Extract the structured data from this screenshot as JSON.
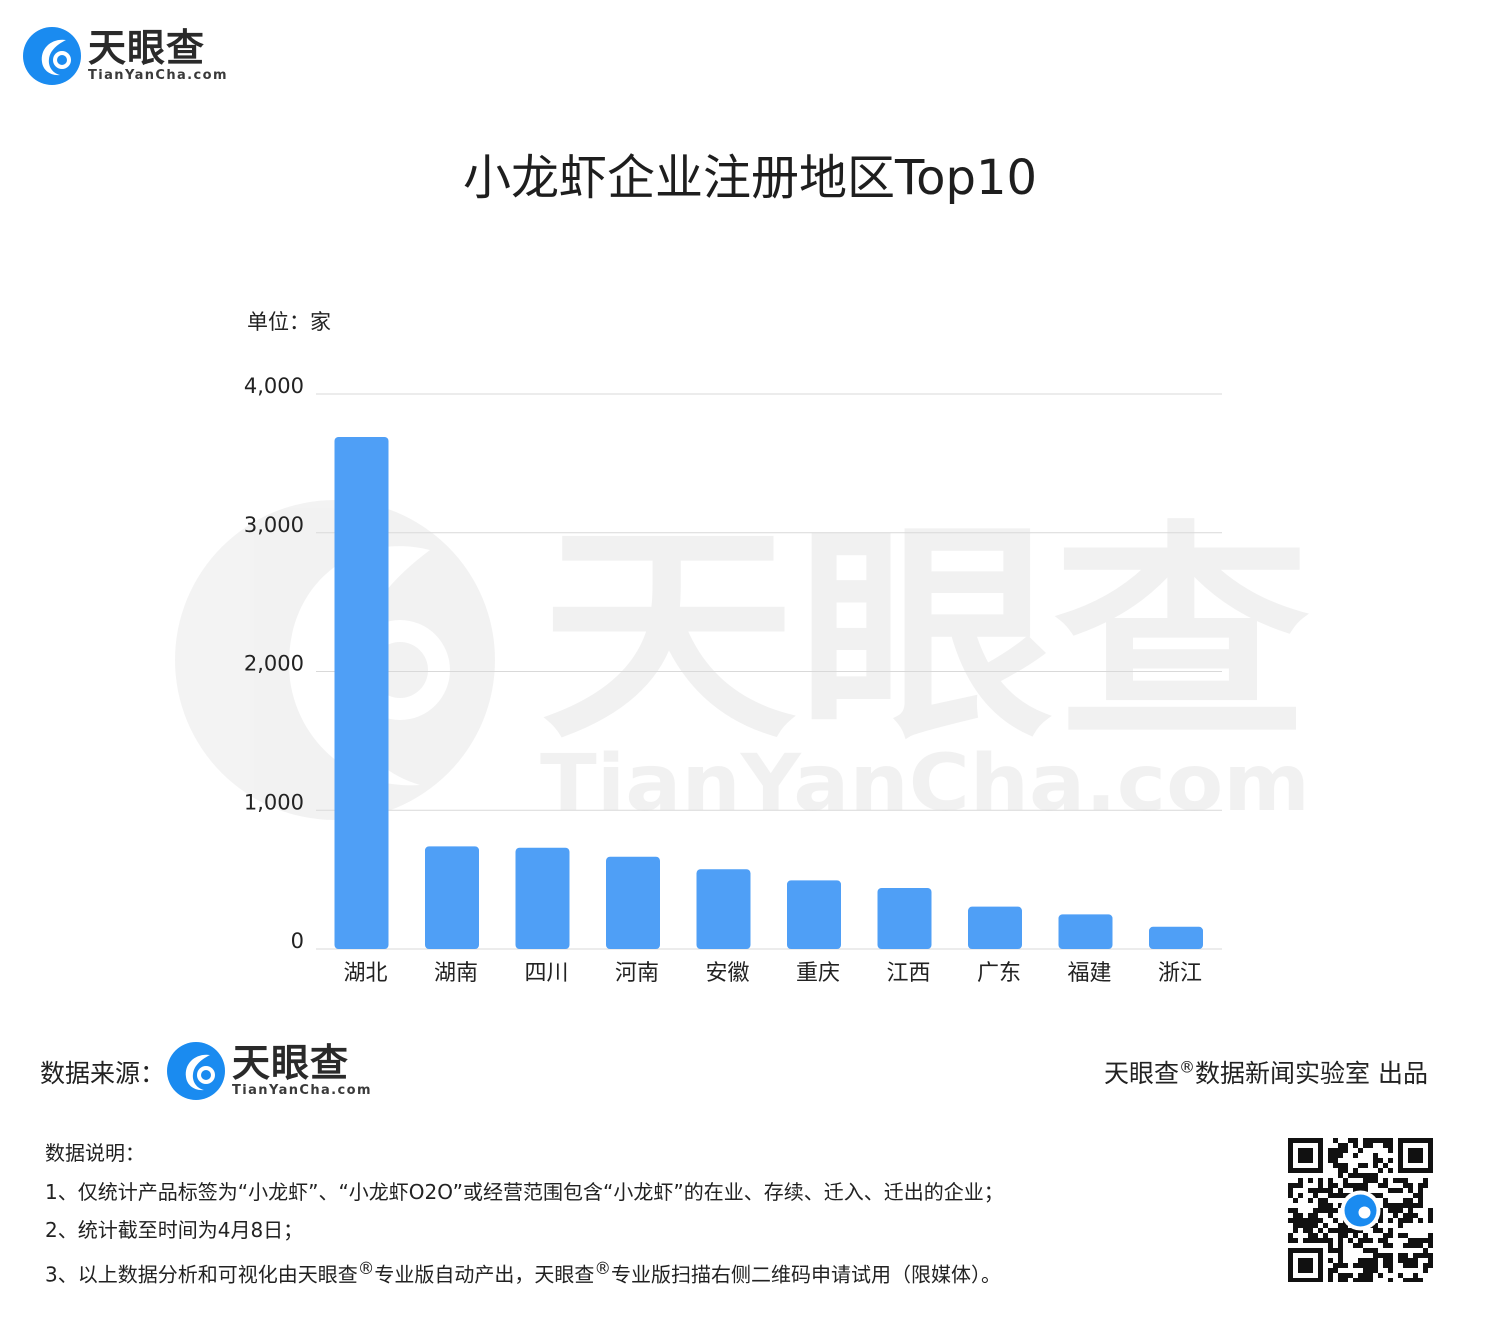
{
  "logo": {
    "name_cn": "天眼查",
    "name_en": "TianYanCha.com"
  },
  "watermark": {
    "name_cn": "天眼查",
    "name_en": "TianYanCha.com"
  },
  "chart_data": {
    "type": "bar",
    "title": "小龙虾企业注册地区Top10",
    "unit_label": "单位：家",
    "categories": [
      "湖北",
      "湖南",
      "四川",
      "河南",
      "安徽",
      "重庆",
      "江西",
      "广东",
      "福建",
      "浙江"
    ],
    "values": [
      3690,
      740,
      730,
      665,
      575,
      495,
      440,
      305,
      250,
      160
    ],
    "ylim": [
      0,
      4000
    ],
    "yticks": [
      0,
      1000,
      2000,
      3000,
      4000
    ],
    "ytick_labels": [
      "0",
      "1,000",
      "2,000",
      "3,000",
      "4,000"
    ],
    "grid": true,
    "bar_color": "#4f9ff6",
    "grid_color": "#d9d9d9"
  },
  "footer": {
    "source_label": "数据来源：",
    "producer_prefix": "天眼查",
    "producer_reg": "®",
    "producer_suffix": "数据新闻实验室 出品",
    "notes_title": "数据说明：",
    "note1": "1、仅统计产品标签为“小龙虾”、“小龙虾O2O”或经营范围包含“小龙虾”的在业、存续、迁入、迁出的企业；",
    "note2": "2、统计截至时间为4月8日；",
    "note3_a": "3、以上数据分析和可视化由天眼查",
    "note3_reg1": "®",
    "note3_b": "专业版自动产出，天眼查",
    "note3_reg2": "®",
    "note3_c": "专业版扫描右侧二维码申请试用（限媒体）。"
  }
}
